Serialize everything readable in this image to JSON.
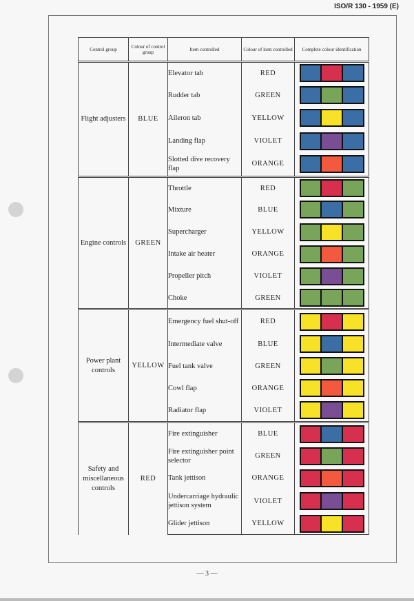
{
  "header": "ISO/R 130 - 1959 (E)",
  "footer": "— 3 —",
  "colors": {
    "BLUE": "#3a6ea4",
    "GREEN": "#79a55a",
    "YELLOW": "#f8e228",
    "RED": "#d7304f",
    "VIOLET": "#7a4e94",
    "ORANGE": "#f3593f"
  },
  "table": {
    "headers": {
      "control_group": "Control group",
      "colour_group": "Colour of control group",
      "item_controlled": "Item controlled",
      "colour_item": "Colour of item controlled",
      "complete": "Complete colour identification"
    },
    "groups": [
      {
        "name": "Flight adjusters",
        "colour": "BLUE",
        "items": [
          {
            "item": "Elevator tab",
            "colour": "RED"
          },
          {
            "item": "Rudder tab",
            "colour": "GREEN"
          },
          {
            "item": "Aileron tab",
            "colour": "YELLOW"
          },
          {
            "item": "Landing flap",
            "colour": "VIOLET"
          },
          {
            "item": "Slotted dive recovery flap",
            "colour": "ORANGE"
          }
        ]
      },
      {
        "name": "Engine controls",
        "colour": "GREEN",
        "items": [
          {
            "item": "Throttle",
            "colour": "RED"
          },
          {
            "item": "Mixture",
            "colour": "BLUE"
          },
          {
            "item": "Supercharger",
            "colour": "YELLOW"
          },
          {
            "item": "Intake air heater",
            "colour": "ORANGE"
          },
          {
            "item": "Propeller pitch",
            "colour": "VIOLET"
          },
          {
            "item": "Choke",
            "colour": "GREEN"
          }
        ]
      },
      {
        "name": "Power plant controls",
        "colour": "YELLOW",
        "items": [
          {
            "item": "Emergency fuel shut-off",
            "colour": "RED"
          },
          {
            "item": "Intermediate valve",
            "colour": "BLUE"
          },
          {
            "item": "Fuel tank valve",
            "colour": "GREEN"
          },
          {
            "item": "Cowl flap",
            "colour": "ORANGE"
          },
          {
            "item": "Radiator flap",
            "colour": "VIOLET"
          }
        ]
      },
      {
        "name": "Safety and miscellaneous controls",
        "colour": "RED",
        "items": [
          {
            "item": "Fire extinguisher",
            "colour": "BLUE"
          },
          {
            "item": "Fire extinguisher point selector",
            "colour": "GREEN"
          },
          {
            "item": "Tank jettison",
            "colour": "ORANGE"
          },
          {
            "item": "Undercarriage hydraulic jettison system",
            "colour": "VIOLET"
          },
          {
            "item": "Glider jettison",
            "colour": "YELLOW"
          }
        ]
      }
    ]
  }
}
